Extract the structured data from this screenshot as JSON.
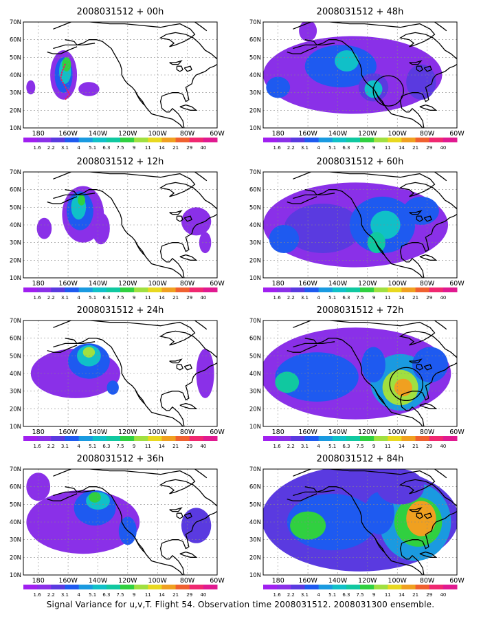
{
  "caption": "Signal Variance for u,v,T. Flight 54. Observation time 2008031512. 2008031300 ensemble.",
  "lat_labels": [
    "70N",
    "60N",
    "50N",
    "40N",
    "30N",
    "20N",
    "10N"
  ],
  "lon_labels": [
    "180",
    "160W",
    "140W",
    "120W",
    "100W",
    "80W",
    "60W"
  ],
  "colorbar": {
    "labels": [
      "1.6",
      "2.2",
      "3.1",
      "4",
      "5.1",
      "6.3",
      "7.5",
      "9",
      "11",
      "14",
      "21",
      "29",
      "40"
    ],
    "colors": [
      "#a020f0",
      "#8a30e8",
      "#5a3ae0",
      "#1e5af0",
      "#1a9ae0",
      "#10c0c8",
      "#10c8a0",
      "#30d040",
      "#a0e040",
      "#e8d820",
      "#f0a020",
      "#f06030",
      "#f02870",
      "#e01a90"
    ]
  },
  "panels": [
    {
      "title": "2008031512 + 00h",
      "hour": 0
    },
    {
      "title": "2008031512 + 12h",
      "hour": 12
    },
    {
      "title": "2008031512 + 24h",
      "hour": 24
    },
    {
      "title": "2008031512 + 36h",
      "hour": 36
    },
    {
      "title": "2008031512 + 48h",
      "hour": 48
    },
    {
      "title": "2008031512 + 60h",
      "hour": 60
    },
    {
      "title": "2008031512 + 72h",
      "hour": 72
    },
    {
      "title": "2008031512 + 84h",
      "hour": 84
    }
  ]
}
